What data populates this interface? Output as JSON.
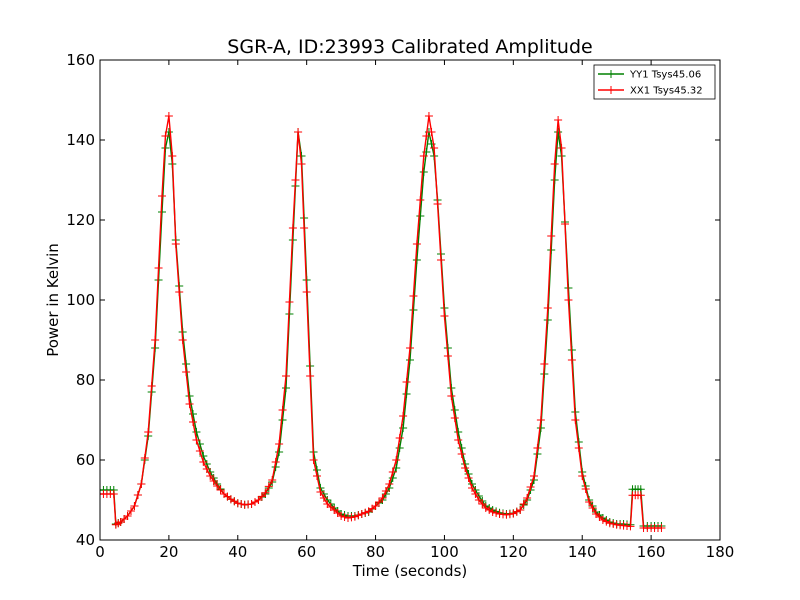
{
  "chart_data": {
    "type": "line",
    "title": "SGR-A, ID:23993 Calibrated Amplitude",
    "xlabel": "Time (seconds)",
    "ylabel": "Power in Kelvin",
    "xlim": [
      0,
      180
    ],
    "ylim": [
      40,
      160
    ],
    "xticks": [
      0,
      20,
      40,
      60,
      80,
      100,
      120,
      140,
      160,
      180
    ],
    "yticks": [
      40,
      60,
      80,
      100,
      120,
      140,
      160
    ],
    "grid": false,
    "legend_position": "top-right",
    "marker": "+",
    "series": [
      {
        "name": "YY1 Tsys45.06",
        "color": "#008000",
        "points": [
          [
            0,
            52.5
          ],
          [
            2,
            52.5
          ],
          [
            4,
            52.5
          ],
          [
            4.6,
            44
          ],
          [
            6,
            44.5
          ],
          [
            8,
            46
          ],
          [
            10,
            48.5
          ],
          [
            12,
            54
          ],
          [
            14,
            66
          ],
          [
            16,
            88
          ],
          [
            18,
            122
          ],
          [
            19,
            138
          ],
          [
            20,
            142
          ],
          [
            21,
            134
          ],
          [
            22,
            115
          ],
          [
            24,
            92
          ],
          [
            26,
            76
          ],
          [
            28,
            67
          ],
          [
            30,
            61
          ],
          [
            32,
            57
          ],
          [
            34,
            54
          ],
          [
            36,
            51.5
          ],
          [
            38,
            50.2
          ],
          [
            40,
            49.2
          ],
          [
            42,
            48.8
          ],
          [
            44,
            49
          ],
          [
            46,
            50
          ],
          [
            48,
            51.5
          ],
          [
            50,
            54.5
          ],
          [
            52,
            62
          ],
          [
            54,
            78
          ],
          [
            56,
            115
          ],
          [
            57.5,
            142
          ],
          [
            58.5,
            136
          ],
          [
            60,
            105
          ],
          [
            62,
            62
          ],
          [
            64,
            53
          ],
          [
            66,
            50
          ],
          [
            68,
            48
          ],
          [
            70,
            46.5
          ],
          [
            72,
            46
          ],
          [
            74,
            46
          ],
          [
            76,
            46.5
          ],
          [
            78,
            47
          ],
          [
            80,
            48.5
          ],
          [
            82,
            50
          ],
          [
            84,
            53
          ],
          [
            86,
            58
          ],
          [
            88,
            68
          ],
          [
            90,
            85
          ],
          [
            92,
            110
          ],
          [
            94,
            132
          ],
          [
            95.5,
            142
          ],
          [
            97,
            136
          ],
          [
            98,
            125
          ],
          [
            100,
            98
          ],
          [
            102,
            78
          ],
          [
            104,
            67
          ],
          [
            106,
            59
          ],
          [
            108,
            54
          ],
          [
            110,
            51
          ],
          [
            112,
            48.5
          ],
          [
            114,
            47.5
          ],
          [
            116,
            46.8
          ],
          [
            118,
            46.5
          ],
          [
            120,
            46.7
          ],
          [
            122,
            47.5
          ],
          [
            124,
            50
          ],
          [
            126,
            55
          ],
          [
            128,
            68
          ],
          [
            130,
            95
          ],
          [
            132,
            130
          ],
          [
            133,
            142
          ],
          [
            134,
            136
          ],
          [
            136,
            103
          ],
          [
            138,
            72
          ],
          [
            140,
            57
          ],
          [
            142,
            50
          ],
          [
            144,
            47
          ],
          [
            146,
            45.5
          ],
          [
            148,
            44.5
          ],
          [
            150,
            44
          ],
          [
            152,
            44
          ],
          [
            154,
            43.8
          ],
          [
            154.6,
            52.7
          ],
          [
            157,
            52.7
          ],
          [
            157.8,
            43.5
          ],
          [
            160,
            43.5
          ],
          [
            163,
            43.5
          ]
        ]
      },
      {
        "name": "XX1 Tsys45.32",
        "color": "#ff0000",
        "points": [
          [
            0,
            51.5
          ],
          [
            2,
            51.5
          ],
          [
            4,
            51.5
          ],
          [
            4.6,
            43.8
          ],
          [
            6,
            44.5
          ],
          [
            8,
            46
          ],
          [
            10,
            48.5
          ],
          [
            12,
            54
          ],
          [
            14,
            67
          ],
          [
            16,
            90
          ],
          [
            18,
            126
          ],
          [
            19,
            141
          ],
          [
            20,
            146
          ],
          [
            21,
            136
          ],
          [
            22,
            114
          ],
          [
            24,
            90
          ],
          [
            26,
            74
          ],
          [
            28,
            65
          ],
          [
            30,
            59.5
          ],
          [
            32,
            56
          ],
          [
            34,
            53.5
          ],
          [
            36,
            51.5
          ],
          [
            38,
            50.2
          ],
          [
            40,
            49.2
          ],
          [
            42,
            48.8
          ],
          [
            44,
            49
          ],
          [
            46,
            50
          ],
          [
            48,
            51.8
          ],
          [
            50,
            55
          ],
          [
            52,
            64
          ],
          [
            54,
            81
          ],
          [
            56,
            118
          ],
          [
            57.5,
            142
          ],
          [
            58.5,
            134
          ],
          [
            60,
            102
          ],
          [
            62,
            60
          ],
          [
            64,
            52
          ],
          [
            66,
            49
          ],
          [
            68,
            47.5
          ],
          [
            70,
            46
          ],
          [
            72,
            45.5
          ],
          [
            74,
            45.8
          ],
          [
            76,
            46.5
          ],
          [
            78,
            47.2
          ],
          [
            80,
            48.5
          ],
          [
            82,
            50.5
          ],
          [
            84,
            54
          ],
          [
            86,
            60
          ],
          [
            88,
            71
          ],
          [
            90,
            88
          ],
          [
            92,
            114
          ],
          [
            94,
            136
          ],
          [
            95.5,
            146
          ],
          [
            97,
            138
          ],
          [
            98,
            124
          ],
          [
            100,
            96
          ],
          [
            102,
            76
          ],
          [
            104,
            65
          ],
          [
            106,
            58
          ],
          [
            108,
            53
          ],
          [
            110,
            50
          ],
          [
            112,
            48
          ],
          [
            114,
            47
          ],
          [
            116,
            46.5
          ],
          [
            118,
            46.3
          ],
          [
            120,
            46.6
          ],
          [
            122,
            47.5
          ],
          [
            124,
            50.5
          ],
          [
            126,
            56
          ],
          [
            128,
            70
          ],
          [
            130,
            98
          ],
          [
            132,
            134
          ],
          [
            133,
            145
          ],
          [
            134,
            138
          ],
          [
            136,
            100
          ],
          [
            138,
            70
          ],
          [
            140,
            56
          ],
          [
            142,
            49.5
          ],
          [
            144,
            46.5
          ],
          [
            146,
            45
          ],
          [
            148,
            44.2
          ],
          [
            150,
            43.8
          ],
          [
            152,
            43.6
          ],
          [
            154,
            43.4
          ],
          [
            154.6,
            51.2
          ],
          [
            157,
            51.2
          ],
          [
            157.8,
            43
          ],
          [
            160,
            43
          ],
          [
            163,
            43
          ]
        ]
      }
    ]
  }
}
